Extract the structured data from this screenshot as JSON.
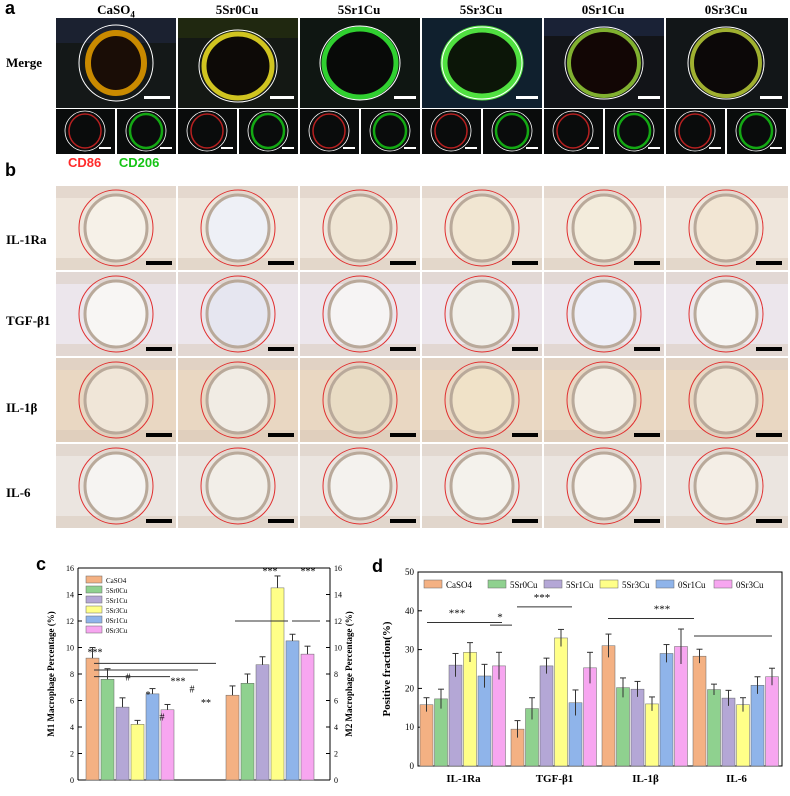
{
  "panel_a": {
    "letter": "a",
    "columns": [
      "CaSO4",
      "5Sr0Cu",
      "5Sr1Cu",
      "5Sr3Cu",
      "0Sr1Cu",
      "0Sr3Cu"
    ],
    "row_label": "Merge",
    "legend": {
      "red": "CD86",
      "green": "CD206"
    },
    "colors": {
      "red": "#ff2a2a",
      "green": "#16c416"
    }
  },
  "panel_b": {
    "letter": "b",
    "rows": [
      "IL-1Ra",
      "TGF-β1",
      "IL-1β",
      "IL-6"
    ]
  },
  "chart_data": [
    {
      "letter": "c",
      "type": "bar",
      "categories": [
        "",
        ""
      ],
      "series": [
        {
          "name": "CaSO4",
          "color": "#f4b183",
          "values": [
            9.2,
            6.4
          ],
          "errors": [
            0.8,
            0.7
          ]
        },
        {
          "name": "5Sr0Cu",
          "color": "#8fd18f",
          "values": [
            7.6,
            7.3
          ],
          "errors": [
            0.8,
            0.7
          ]
        },
        {
          "name": "5Sr1Cu",
          "color": "#b4a7d6",
          "values": [
            5.5,
            8.7
          ],
          "errors": [
            0.7,
            0.6
          ]
        },
        {
          "name": "5Sr3Cu",
          "color": "#ffff88",
          "values": [
            4.2,
            14.5
          ],
          "errors": [
            0.3,
            0.9
          ]
        },
        {
          "name": "0Sr1Cu",
          "color": "#8fb4ea",
          "values": [
            6.5,
            10.5
          ],
          "errors": [
            0.4,
            0.5
          ]
        },
        {
          "name": "0Sr3Cu",
          "color": "#f7a6f0",
          "values": [
            5.3,
            9.5
          ],
          "errors": [
            0.4,
            0.6
          ]
        }
      ],
      "ylabel_left": "M1 Macrophage Percentage (%)",
      "ylabel_right": "M2 Macrophage Percentage (%)",
      "ylim": [
        0,
        16
      ],
      "yticks": [
        0,
        2,
        4,
        6,
        8,
        10,
        12,
        14,
        16
      ],
      "annotations": [
        "***",
        "#",
        "*",
        "#",
        "***",
        "#",
        "**",
        "***",
        "***"
      ]
    },
    {
      "letter": "d",
      "type": "bar",
      "categories": [
        "IL-1Ra",
        "TGF-β1",
        "IL-1β",
        "IL-6"
      ],
      "series": [
        {
          "name": "CaSO4",
          "color": "#f4b183",
          "values": [
            15.8,
            9.5,
            31,
            28.3
          ],
          "errors": [
            1.8,
            2.2,
            3,
            1.8
          ]
        },
        {
          "name": "5Sr0Cu",
          "color": "#8fd18f",
          "values": [
            17.3,
            14.8,
            20.2,
            19.7
          ],
          "errors": [
            2.5,
            2.8,
            2.5,
            1.4
          ]
        },
        {
          "name": "5Sr1Cu",
          "color": "#b4a7d6",
          "values": [
            26,
            25.8,
            19.8,
            17.5
          ],
          "errors": [
            3,
            2,
            2,
            2
          ]
        },
        {
          "name": "5Sr3Cu",
          "color": "#ffff88",
          "values": [
            29.3,
            33,
            16,
            15.8
          ],
          "errors": [
            2.5,
            2.2,
            1.8,
            1.8
          ]
        },
        {
          "name": "0Sr1Cu",
          "color": "#8fb4ea",
          "values": [
            23.2,
            16.3,
            29,
            20.8
          ],
          "errors": [
            3,
            3.3,
            2.3,
            2.2
          ]
        },
        {
          "name": "0Sr3Cu",
          "color": "#f7a6f0",
          "values": [
            25.8,
            25.3,
            30.8,
            23
          ],
          "errors": [
            3.5,
            4,
            4.5,
            2.2
          ]
        }
      ],
      "ylabel": "Positive fraction(%)",
      "ylim": [
        0,
        50
      ],
      "yticks": [
        0,
        10,
        20,
        30,
        40,
        50
      ],
      "annotations": [
        "***",
        "*",
        "***",
        "***"
      ]
    }
  ]
}
